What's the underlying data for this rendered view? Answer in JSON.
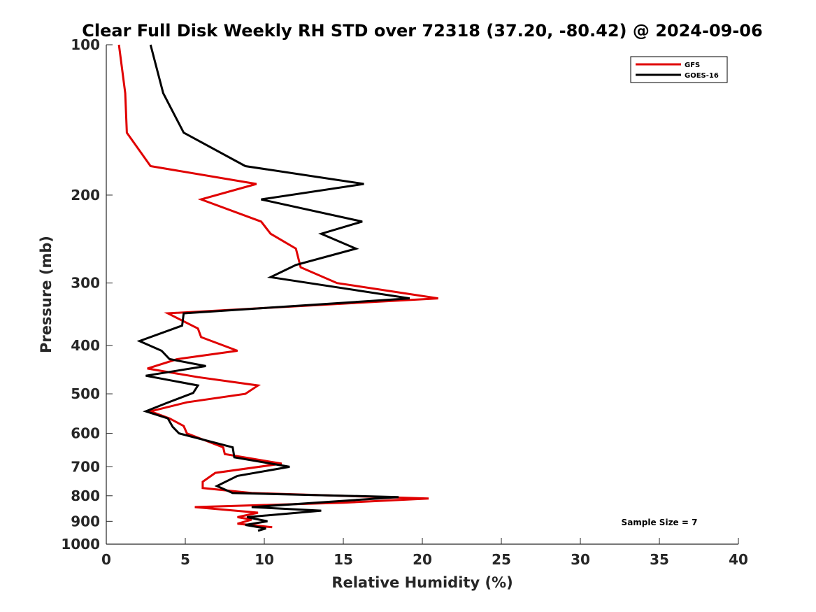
{
  "chart_data": {
    "type": "line",
    "title": "Clear Full Disk Weekly RH STD over 72318 (37.20, -80.42) @ 2024-09-06",
    "xlabel": "Relative Humidity (%)",
    "ylabel": "Pressure (mb)",
    "xlim": [
      0,
      40
    ],
    "ylim": [
      100,
      1000
    ],
    "yscale": "log",
    "y_reversed": true,
    "xticks": [
      0,
      5,
      10,
      15,
      20,
      25,
      30,
      35,
      40
    ],
    "yticks": [
      100,
      200,
      300,
      400,
      500,
      600,
      700,
      800,
      900,
      1000
    ],
    "legend_position": "top-right",
    "annotation": "Sample Size = 7",
    "series": [
      {
        "name": "GFS",
        "color": "#e00000",
        "points": [
          [
            0.8,
            100
          ],
          [
            1.2,
            125
          ],
          [
            1.3,
            150
          ],
          [
            2.8,
            175
          ],
          [
            9.5,
            190
          ],
          [
            6.0,
            204
          ],
          [
            9.8,
            226
          ],
          [
            10.4,
            239
          ],
          [
            12.0,
            256
          ],
          [
            12.3,
            279
          ],
          [
            14.6,
            300
          ],
          [
            21.0,
            322
          ],
          [
            3.9,
            345
          ],
          [
            5.8,
            370
          ],
          [
            6.0,
            385
          ],
          [
            8.3,
            410
          ],
          [
            4.5,
            426
          ],
          [
            2.6,
            445
          ],
          [
            5.8,
            463
          ],
          [
            9.6,
            481
          ],
          [
            8.8,
            500
          ],
          [
            5.1,
            520
          ],
          [
            2.8,
            542
          ],
          [
            4.0,
            560
          ],
          [
            4.9,
            580
          ],
          [
            5.1,
            600
          ],
          [
            7.4,
            640
          ],
          [
            7.5,
            660
          ],
          [
            11.1,
            690
          ],
          [
            6.9,
            720
          ],
          [
            6.1,
            750
          ],
          [
            6.1,
            772
          ],
          [
            9.2,
            790
          ],
          [
            20.4,
            810
          ],
          [
            15.0,
            826
          ],
          [
            5.6,
            843
          ],
          [
            9.6,
            865
          ],
          [
            8.3,
            883
          ],
          [
            9.2,
            893
          ],
          [
            8.3,
            910
          ],
          [
            10.5,
            925
          ]
        ]
      },
      {
        "name": "GOES-16",
        "color": "#000000",
        "points": [
          [
            2.8,
            100
          ],
          [
            3.6,
            125
          ],
          [
            4.9,
            150
          ],
          [
            8.8,
            175
          ],
          [
            16.3,
            190
          ],
          [
            9.8,
            204
          ],
          [
            16.2,
            226
          ],
          [
            13.6,
            239
          ],
          [
            15.8,
            256
          ],
          [
            12.0,
            276
          ],
          [
            10.4,
            292
          ],
          [
            19.2,
            322
          ],
          [
            4.9,
            345
          ],
          [
            4.8,
            365
          ],
          [
            2.1,
            392
          ],
          [
            3.5,
            410
          ],
          [
            4.0,
            426
          ],
          [
            6.3,
            440
          ],
          [
            2.5,
            460
          ],
          [
            5.8,
            481
          ],
          [
            5.5,
            498
          ],
          [
            3.8,
            522
          ],
          [
            2.5,
            542
          ],
          [
            3.9,
            560
          ],
          [
            4.2,
            582
          ],
          [
            4.6,
            600
          ],
          [
            8.0,
            640
          ],
          [
            8.1,
            670
          ],
          [
            11.6,
            700
          ],
          [
            8.3,
            730
          ],
          [
            7.0,
            765
          ],
          [
            8.0,
            790
          ],
          [
            18.5,
            805
          ],
          [
            9.2,
            843
          ],
          [
            13.6,
            857
          ],
          [
            8.9,
            883
          ],
          [
            10.2,
            900
          ],
          [
            8.8,
            915
          ],
          [
            10.1,
            930
          ],
          [
            9.6,
            940
          ]
        ]
      }
    ]
  }
}
